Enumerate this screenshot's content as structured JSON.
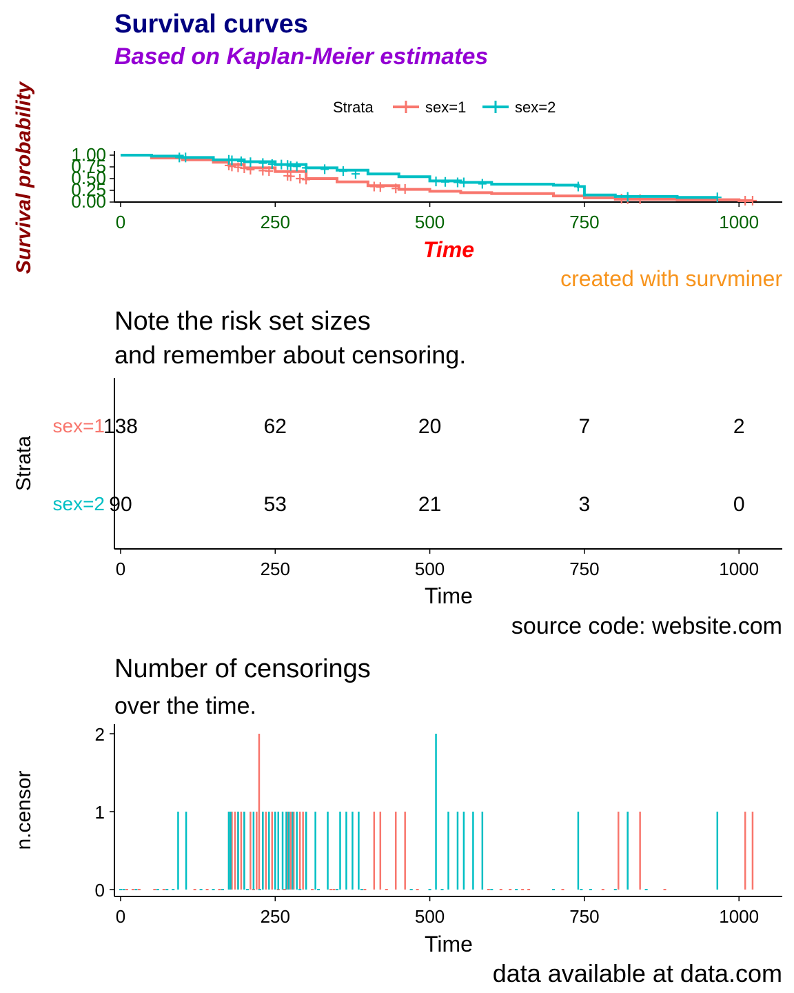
{
  "colors": {
    "sex1": "#F8766D",
    "sex2": "#00BFC4",
    "title": "#000080",
    "subtitle": "#9400D3",
    "survTick": "#006400",
    "survXlab": "#FF0000",
    "survYlab": "#8B0000",
    "caption": "#F7941D"
  },
  "chart_data": [
    {
      "type": "line",
      "title": "Survival curves",
      "subtitle": "Based on Kaplan-Meier estimates",
      "xlabel": "Time",
      "ylabel": "Survival probability",
      "caption": "created with survminer",
      "xlim": [
        -10,
        1070
      ],
      "ylim": [
        0,
        1
      ],
      "xticks": [
        0,
        250,
        500,
        750,
        1000
      ],
      "yticks": [
        "0.00",
        "0.25",
        "0.50",
        "0.75",
        "1.00"
      ],
      "legend": {
        "title": "Strata",
        "position": "top"
      },
      "series": [
        {
          "name": "sex=1",
          "color_key": "sex1",
          "x": [
            0,
            50,
            100,
            150,
            175,
            200,
            250,
            300,
            350,
            400,
            450,
            500,
            550,
            600,
            700,
            750,
            800,
            900,
            1000,
            1022
          ],
          "y": [
            1.0,
            0.94,
            0.9,
            0.85,
            0.8,
            0.73,
            0.65,
            0.5,
            0.43,
            0.35,
            0.27,
            0.23,
            0.2,
            0.18,
            0.13,
            0.09,
            0.06,
            0.05,
            0.03,
            0.03
          ],
          "censor_x": [
            175,
            180,
            190,
            200,
            210,
            230,
            240,
            270,
            275,
            290,
            300,
            410,
            420,
            445,
            460,
            810,
            820,
            840,
            1010,
            1022
          ],
          "censor_y": [
            0.78,
            0.76,
            0.74,
            0.72,
            0.69,
            0.67,
            0.66,
            0.56,
            0.55,
            0.5,
            0.48,
            0.33,
            0.32,
            0.29,
            0.28,
            0.07,
            0.06,
            0.06,
            0.03,
            0.03
          ]
        },
        {
          "name": "sex=2",
          "color_key": "sex2",
          "x": [
            0,
            50,
            100,
            150,
            200,
            250,
            300,
            350,
            400,
            450,
            500,
            550,
            600,
            700,
            740,
            750,
            800,
            900,
            965
          ],
          "y": [
            1.0,
            0.98,
            0.95,
            0.9,
            0.86,
            0.8,
            0.73,
            0.68,
            0.6,
            0.54,
            0.45,
            0.42,
            0.38,
            0.36,
            0.33,
            0.15,
            0.12,
            0.1,
            0.1
          ],
          "censor_x": [
            95,
            105,
            175,
            180,
            195,
            210,
            230,
            245,
            260,
            270,
            275,
            285,
            300,
            330,
            360,
            380,
            510,
            525,
            545,
            555,
            585,
            740,
            820,
            965
          ],
          "censor_y": [
            0.95,
            0.95,
            0.9,
            0.89,
            0.87,
            0.85,
            0.83,
            0.81,
            0.8,
            0.79,
            0.77,
            0.76,
            0.73,
            0.7,
            0.66,
            0.6,
            0.44,
            0.43,
            0.42,
            0.42,
            0.39,
            0.33,
            0.11,
            0.1
          ]
        }
      ]
    },
    {
      "type": "table",
      "title": "Note the risk set sizes",
      "subtitle": "and remember about censoring.",
      "xlabel": "Time",
      "ylabel": "Strata",
      "caption": "source code: website.com",
      "xlim": [
        -10,
        1070
      ],
      "xticks": [
        0,
        250,
        500,
        750,
        1000
      ],
      "rows": [
        {
          "name": "sex=1",
          "color_key": "sex1",
          "values": [
            "138",
            "62",
            "20",
            "7",
            "2"
          ]
        },
        {
          "name": "sex=2",
          "color_key": "sex2",
          "values": [
            "90",
            "53",
            "21",
            "3",
            "0"
          ]
        }
      ]
    },
    {
      "type": "bar",
      "title": "Number of censorings",
      "subtitle": "over the time.",
      "xlabel": "Time",
      "ylabel": "n.censor",
      "caption": "data available at data.com",
      "xlim": [
        -10,
        1070
      ],
      "ylim": [
        0,
        2
      ],
      "xticks": [
        0,
        250,
        500,
        750,
        1000
      ],
      "yticks": [
        0,
        1,
        2
      ],
      "series": [
        {
          "name": "sex=1",
          "color_key": "sex1",
          "x": [
            175,
            180,
            185,
            190,
            195,
            200,
            210,
            220,
            224,
            230,
            235,
            245,
            250,
            270,
            275,
            280,
            290,
            295,
            300,
            410,
            420,
            445,
            460,
            805,
            820,
            840,
            1010,
            1022
          ],
          "n": [
            1,
            1,
            1,
            1,
            1,
            1,
            1,
            1,
            2,
            1,
            1,
            1,
            1,
            1,
            1,
            1,
            1,
            1,
            1,
            1,
            1,
            1,
            1,
            1,
            1,
            1,
            1,
            1
          ],
          "zero_x": [
            0,
            10,
            20,
            30,
            55,
            70,
            120,
            140,
            160,
            215,
            255,
            265,
            310,
            340,
            345,
            395,
            430,
            470,
            480,
            595,
            615,
            630,
            650,
            660,
            700,
            715,
            780,
            880
          ]
        },
        {
          "name": "sex=2",
          "color_key": "sex2",
          "x": [
            93,
            106,
            175,
            178,
            190,
            200,
            215,
            230,
            240,
            250,
            255,
            262,
            268,
            272,
            278,
            285,
            300,
            315,
            335,
            355,
            365,
            375,
            385,
            510,
            530,
            545,
            555,
            570,
            585,
            740,
            820,
            965
          ],
          "n": [
            1,
            1,
            1,
            1,
            1,
            1,
            1,
            1,
            1,
            1,
            1,
            1,
            1,
            1,
            1,
            1,
            1,
            1,
            1,
            1,
            1,
            1,
            1,
            2,
            1,
            1,
            1,
            1,
            1,
            1,
            1,
            1
          ],
          "zero_x": [
            0,
            5,
            25,
            60,
            75,
            85,
            130,
            150,
            165,
            205,
            225,
            290,
            320,
            350,
            390,
            470,
            500,
            520,
            600,
            640,
            700,
            745,
            760,
            800,
            850
          ]
        }
      ]
    }
  ]
}
